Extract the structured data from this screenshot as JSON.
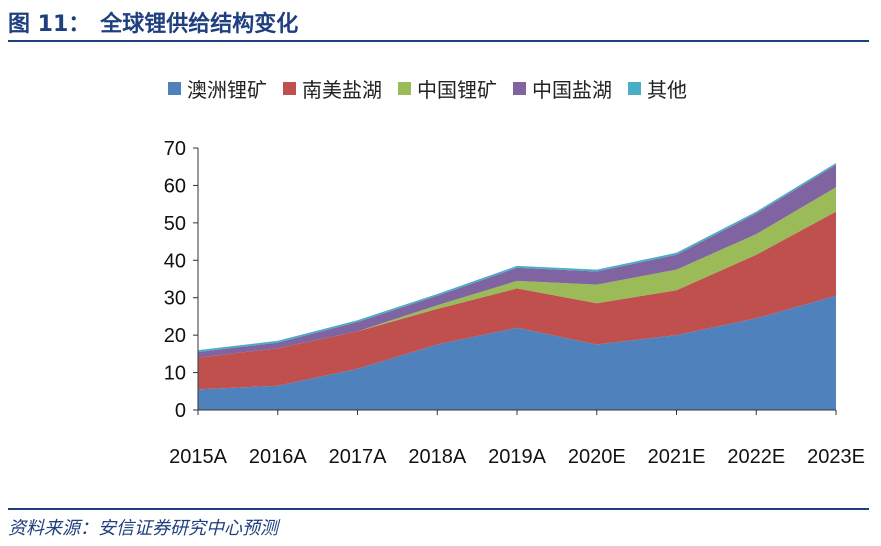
{
  "figure": {
    "number": "图 11：",
    "title": "全球锂供给结构变化"
  },
  "source": "资料来源：安信证券研究中心预测",
  "chart_data": {
    "type": "area",
    "stacked": true,
    "categories": [
      "2015A",
      "2016A",
      "2017A",
      "2018A",
      "2019A",
      "2020E",
      "2021E",
      "2022E",
      "2023E"
    ],
    "series": [
      {
        "name": "澳洲锂矿",
        "color": "#4f81bd",
        "values": [
          5.5,
          6.5,
          11,
          17.5,
          22,
          17.5,
          20,
          24.5,
          30.5
        ]
      },
      {
        "name": "南美盐湖",
        "color": "#c0504d",
        "values": [
          8.5,
          10,
          10,
          9.5,
          10.5,
          11,
          12,
          17,
          22.5
        ]
      },
      {
        "name": "中国锂矿",
        "color": "#9bbb59",
        "values": [
          0,
          0,
          0,
          1,
          2,
          5,
          5.5,
          5.5,
          6.5
        ]
      },
      {
        "name": "中国盐湖",
        "color": "#8064a2",
        "values": [
          1.5,
          1.5,
          2.5,
          2.5,
          3.5,
          3.5,
          4,
          5.5,
          6
        ]
      },
      {
        "name": "其他",
        "color": "#4bacc6",
        "values": [
          0.5,
          0.5,
          0.5,
          0.5,
          0.5,
          0.5,
          0.5,
          0.5,
          0.5
        ]
      }
    ],
    "y_ticks": [
      "0",
      "10",
      "20",
      "30",
      "40",
      "50",
      "60",
      "70"
    ],
    "ylim": [
      0,
      70
    ],
    "grid": false,
    "legend_position": "top"
  }
}
